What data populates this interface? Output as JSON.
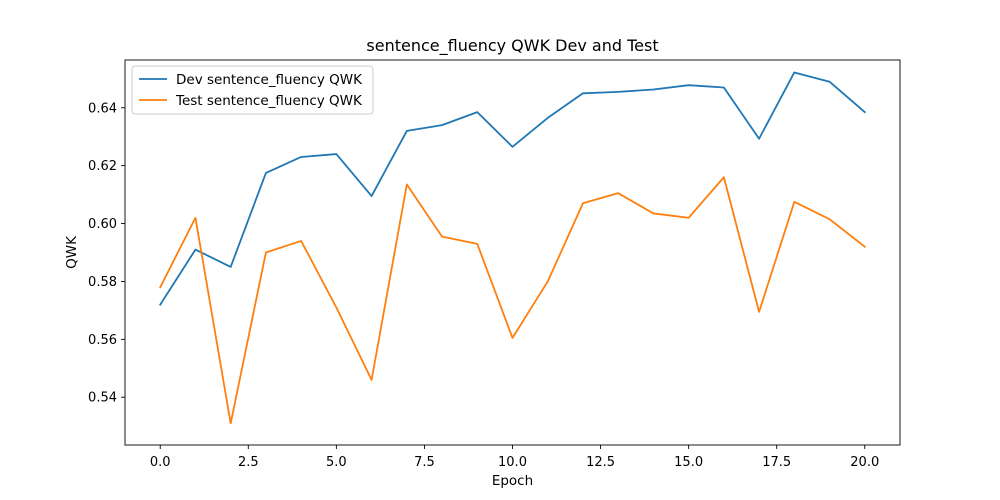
{
  "chart_data": {
    "type": "line",
    "title": "sentence_fluency QWK Dev and Test",
    "xlabel": "Epoch",
    "ylabel": "QWK",
    "xlim": [
      -1,
      21
    ],
    "ylim": [
      0.5235,
      0.6565
    ],
    "xticks": [
      0.0,
      2.5,
      5.0,
      7.5,
      10.0,
      12.5,
      15.0,
      17.5,
      20.0
    ],
    "xtick_labels": [
      "0.0",
      "2.5",
      "5.0",
      "7.5",
      "10.0",
      "12.5",
      "15.0",
      "17.5",
      "20.0"
    ],
    "yticks": [
      0.54,
      0.56,
      0.58,
      0.6,
      0.62,
      0.64
    ],
    "ytick_labels": [
      "0.54",
      "0.56",
      "0.58",
      "0.60",
      "0.62",
      "0.64"
    ],
    "grid": false,
    "legend_position": "top-left",
    "x": [
      0,
      1,
      2,
      3,
      4,
      5,
      6,
      7,
      8,
      9,
      10,
      11,
      12,
      13,
      14,
      15,
      16,
      17,
      18,
      19,
      20
    ],
    "series": [
      {
        "name": "Dev sentence_fluency QWK",
        "color": "#1f77b4",
        "values": [
          0.572,
          0.591,
          0.585,
          0.6175,
          0.623,
          0.624,
          0.6095,
          0.632,
          0.634,
          0.6385,
          0.6265,
          0.6365,
          0.645,
          0.6455,
          0.6463,
          0.6478,
          0.647,
          0.6293,
          0.6522,
          0.649,
          0.6385
        ]
      },
      {
        "name": "Test sentence_fluency QWK",
        "color": "#ff7f0e",
        "values": [
          0.578,
          0.602,
          0.531,
          0.59,
          0.594,
          0.571,
          0.546,
          0.6135,
          0.5955,
          0.593,
          0.5605,
          0.58,
          0.607,
          0.6105,
          0.6035,
          0.602,
          0.616,
          0.5695,
          0.6075,
          0.6015,
          0.592
        ]
      }
    ]
  }
}
